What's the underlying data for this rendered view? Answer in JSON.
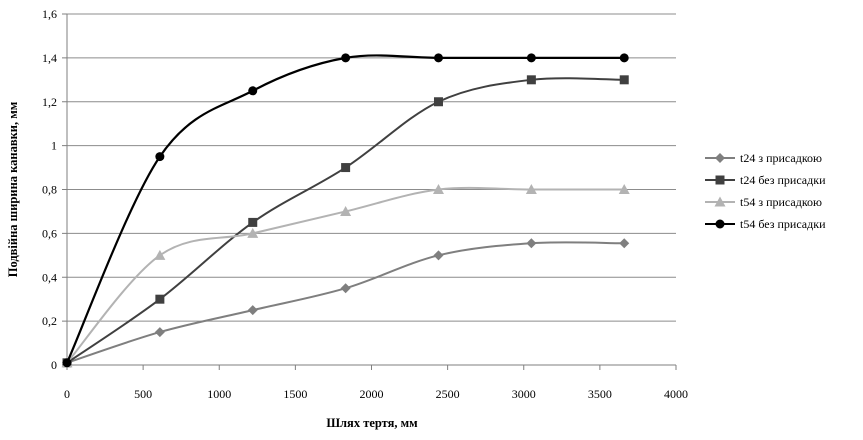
{
  "chart_data": {
    "type": "line",
    "title": "",
    "xlabel": "Шлях тертя, мм",
    "ylabel": "Подвійна ширина канавки, мм",
    "xlim": [
      0,
      4000
    ],
    "ylim": [
      0,
      1.6
    ],
    "xticks": [
      0,
      500,
      1000,
      1500,
      2000,
      2500,
      3000,
      3500,
      4000
    ],
    "yticks": [
      0,
      0.2,
      0.4,
      0.6,
      0.8,
      1,
      1.2,
      1.4,
      1.6
    ],
    "xtick_labels": [
      "0",
      "500",
      "1000",
      "1500",
      "2000",
      "2500",
      "3000",
      "3500",
      "4000"
    ],
    "ytick_labels": [
      "0",
      "0,2",
      "0,4",
      "0,6",
      "0,8",
      "1",
      "1,2",
      "1,4",
      "1,6"
    ],
    "grid": "horizontal",
    "legend_position": "right",
    "smooth": true,
    "series": [
      {
        "name": "t24 з присадкою",
        "marker": "diamond",
        "color": "#7f7f7f",
        "x": [
          0,
          610,
          1220,
          1830,
          2440,
          3050,
          3660
        ],
        "y": [
          0.01,
          0.15,
          0.25,
          0.35,
          0.5,
          0.555,
          0.555
        ]
      },
      {
        "name": "t24 без присадки",
        "marker": "square",
        "color": "#404040",
        "x": [
          0,
          610,
          1220,
          1830,
          2440,
          3050,
          3660
        ],
        "y": [
          0.01,
          0.3,
          0.65,
          0.9,
          1.2,
          1.3,
          1.3
        ]
      },
      {
        "name": "t54 з присадкою",
        "marker": "triangle",
        "color": "#b3b3b3",
        "x": [
          0,
          610,
          1220,
          1830,
          2440,
          3050,
          3660
        ],
        "y": [
          0.01,
          0.5,
          0.6,
          0.7,
          0.8,
          0.8,
          0.8
        ]
      },
      {
        "name": "t54 без присадки",
        "marker": "circle",
        "color": "#000000",
        "x": [
          0,
          610,
          1220,
          1830,
          2440,
          3050,
          3660
        ],
        "y": [
          0.01,
          0.95,
          1.25,
          1.4,
          1.4,
          1.4,
          1.4
        ]
      }
    ]
  }
}
